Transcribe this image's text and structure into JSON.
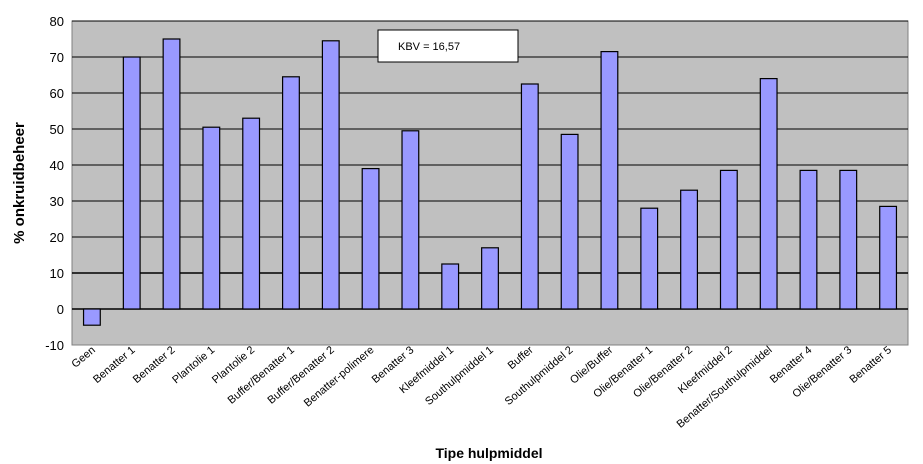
{
  "chart_data": {
    "type": "bar",
    "title": "",
    "xlabel": "Tipe hulpmiddel",
    "ylabel": "% onkruidbeheer",
    "ylim": [
      -10,
      80
    ],
    "yticks": [
      -10,
      0,
      10,
      20,
      30,
      40,
      50,
      60,
      70,
      80
    ],
    "grid": true,
    "annotation": "KBV = 16,57",
    "categories": [
      "Geen",
      "Benatter 1",
      "Benatter 2",
      "Plantolie 1",
      "Plantolie 2",
      "Buffer/Benatter 1",
      "Buffer/Benatter 2",
      "Benatter-polimere",
      "Benatter 3",
      "Kleefmiddel 1",
      "Southulpmiddel 1",
      "Buffer",
      "Southulpmiddel 2",
      "Olie/Buffer",
      "Olie/Benatter 1",
      "Olie/Benatter 2",
      "Kleefmiddel 2",
      "Benatter/Southulpmiddel",
      "Benatter 4",
      "Olie/Benatter 3",
      "Benatter 5"
    ],
    "values": [
      -4.5,
      70,
      75,
      50.5,
      53,
      64.5,
      74.5,
      39,
      49.5,
      12.5,
      17,
      62.5,
      48.5,
      71.5,
      28,
      33,
      38.5,
      64,
      38.5,
      38.5,
      28.5
    ],
    "colors": {
      "bar": "#9999ff",
      "bar_stroke": "#000000",
      "plot_bg": "#c0c0c0",
      "grid": "#000000"
    }
  }
}
